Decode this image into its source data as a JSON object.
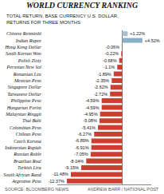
{
  "chart_data": {
    "type": "bar",
    "orientation": "horizontal",
    "title": "WORLD CURRENCY RANKING",
    "subtitle": "TOTAL RETURN, BASE CURRENCY U.S. DOLLAR,\nRETURNS FOR THREE MONTHS",
    "annotations": [
      "SOURCE: BLOOMBERG NEWS",
      "ANDREW BARR / NATIONAL POST"
    ],
    "categories": [
      "Chinese Renminbi",
      "Indian Rupee",
      "Hong Kong Dollar",
      "South Korean Won",
      "Polish Zloty",
      "Peruvian New Sol",
      "Romanian Leu",
      "Mexican Peso",
      "Singapore Dollar",
      "Taiwanese Dollar",
      "Philippine Peso",
      "Hungarian Forint",
      "Malaysian Ringgit",
      "Thai Baht",
      "Colombian Peso",
      "Chilean Peso",
      "Czech Koruna",
      "Indonesian Rupiah",
      "Russian Ruble",
      "Brazilian Real",
      "Turkish Lira",
      "South African Rand",
      "Argentine Peso"
    ],
    "values": [
      1.22,
      4.52,
      -0.06,
      -0.22,
      -0.68,
      -1.1,
      -1.89,
      -2.35,
      -2.62,
      -2.72,
      -4.59,
      -4.59,
      -4.95,
      -5.08,
      -5.41,
      -6.27,
      -6.89,
      -6.91,
      -7.05,
      -8.04,
      -9.15,
      -11.48,
      -12.37
    ],
    "value_labels": [
      "+1.22%",
      "+4.52%",
      "-0.06%",
      "-0.22%",
      "-0.68%",
      "-1.1%",
      "-1.89%",
      "-2.35%",
      "-2.62%",
      "-2.72%",
      "-4.59%",
      "-4.59%",
      "-4.95%",
      "-5.08%",
      "-5.41%",
      "-6.27%",
      "-6.89%",
      "-6.91%",
      "-7.05%",
      "-8.04%",
      "-9.15%",
      "-11.48%",
      "-12.37%"
    ],
    "data_labels": true,
    "colors": [
      "#a8bfcf",
      "#8ab0c8",
      "#cc3e30",
      "#cc3e30",
      "#cc3e30",
      "#cc3e30",
      "#cc3e30",
      "#cc3e30",
      "#cc3e30",
      "#cc3e30",
      "#cc3e30",
      "#cc3e30",
      "#cc3e30",
      "#cc3e30",
      "#cc3e30",
      "#cc3e30",
      "#cc3e30",
      "#cc3e30",
      "#cc3e30",
      "#cc3e30",
      "#cc3e30",
      "#cc3e30",
      "#cc3e30"
    ],
    "xlim": [
      -14.5,
      6.5
    ],
    "grid": false,
    "tick_labels": "y"
  }
}
